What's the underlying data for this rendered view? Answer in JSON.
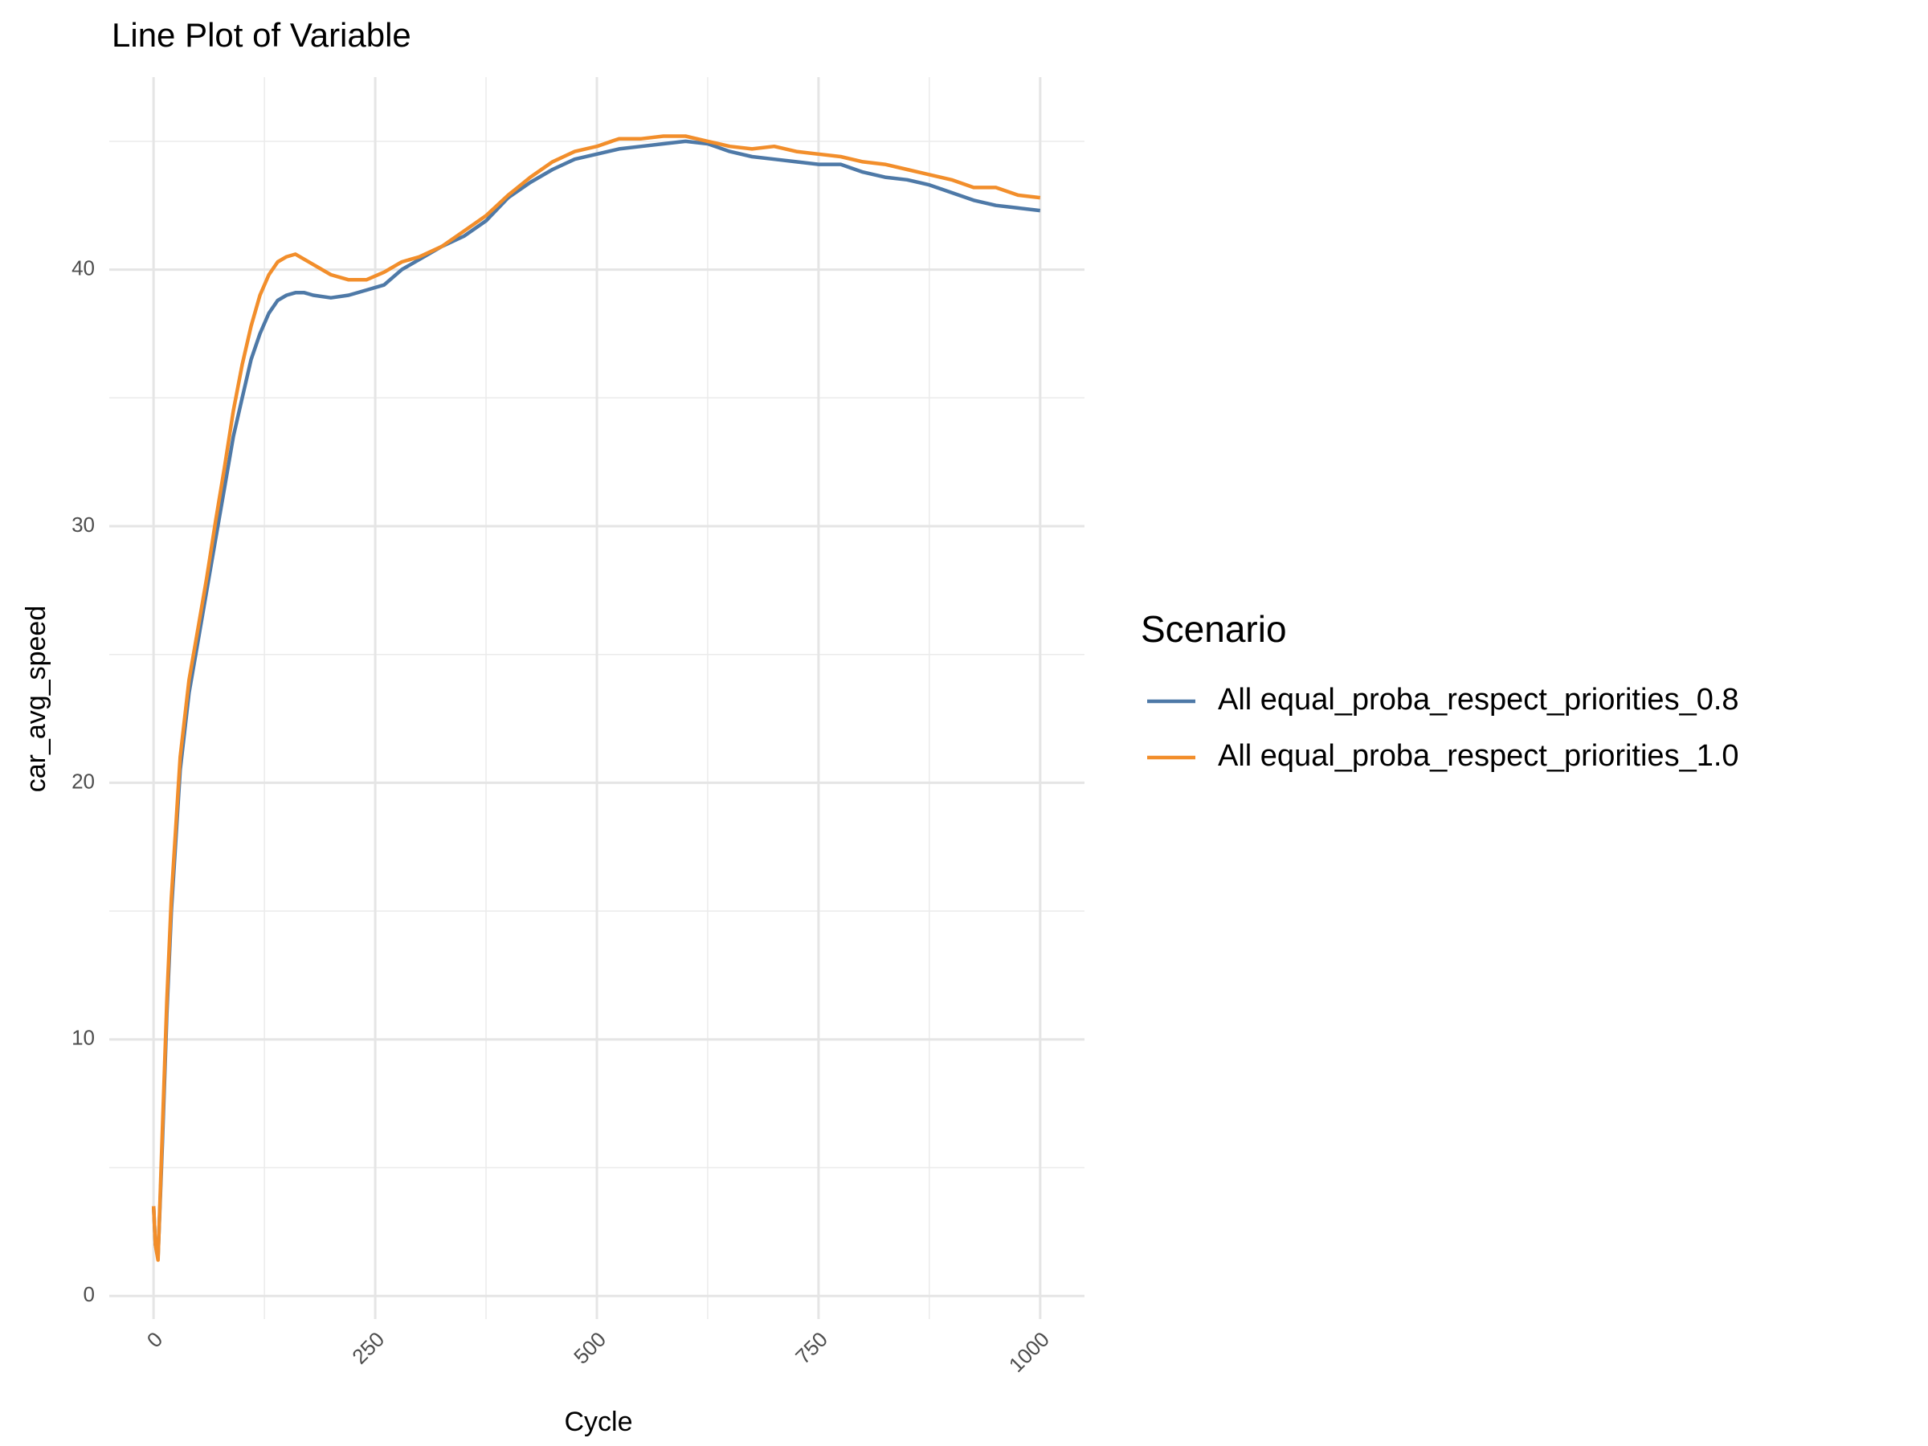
{
  "chart_data": {
    "type": "line",
    "title": "Line Plot of Variable",
    "x_label": "Cycle",
    "y_label": "car_avg_speed",
    "legend_title": "Scenario",
    "x": [
      0,
      2,
      5,
      10,
      15,
      20,
      30,
      40,
      50,
      60,
      70,
      80,
      90,
      100,
      110,
      120,
      130,
      140,
      150,
      160,
      170,
      180,
      200,
      220,
      240,
      260,
      280,
      300,
      325,
      350,
      375,
      400,
      425,
      450,
      475,
      500,
      525,
      550,
      575,
      600,
      625,
      650,
      675,
      700,
      725,
      750,
      775,
      800,
      825,
      850,
      875,
      900,
      925,
      950,
      975,
      1000
    ],
    "series": [
      {
        "name": "All equal_proba_respect_priorities_0.8",
        "color": "#4e79a7",
        "values": [
          3.5,
          2,
          1.5,
          6,
          11,
          15,
          20.5,
          23.5,
          25.5,
          27.5,
          29.5,
          31.5,
          33.5,
          35,
          36.5,
          37.5,
          38.3,
          38.8,
          39.0,
          39.1,
          39.1,
          39.0,
          38.9,
          39.0,
          39.2,
          39.4,
          40.0,
          40.4,
          40.9,
          41.3,
          41.9,
          42.8,
          43.4,
          43.9,
          44.3,
          44.5,
          44.7,
          44.8,
          44.9,
          45.0,
          44.9,
          44.6,
          44.4,
          44.3,
          44.2,
          44.1,
          44.1,
          43.8,
          43.6,
          43.5,
          43.3,
          43.0,
          42.7,
          42.5,
          42.4,
          42.3
        ]
      },
      {
        "name": "All equal_proba_respect_priorities_1.0",
        "color": "#f28e2b",
        "values": [
          3.5,
          2,
          1.4,
          6.5,
          11.5,
          15.5,
          21,
          24,
          26,
          28,
          30.2,
          32.3,
          34.5,
          36.3,
          37.8,
          39,
          39.8,
          40.3,
          40.5,
          40.6,
          40.4,
          40.2,
          39.8,
          39.6,
          39.6,
          39.9,
          40.3,
          40.5,
          40.9,
          41.5,
          42.1,
          42.9,
          43.6,
          44.2,
          44.6,
          44.8,
          45.1,
          45.1,
          45.2,
          45.2,
          45.0,
          44.8,
          44.7,
          44.8,
          44.6,
          44.5,
          44.4,
          44.2,
          44.1,
          43.9,
          43.7,
          43.5,
          43.2,
          43.2,
          42.9,
          42.8
        ]
      }
    ],
    "xlim": [
      -50,
      1050
    ],
    "ylim": [
      -0.9,
      47.5
    ],
    "xticks": [
      0,
      250,
      500,
      750,
      1000
    ],
    "yticks": [
      0,
      10,
      20,
      30,
      40
    ],
    "grid": true
  }
}
